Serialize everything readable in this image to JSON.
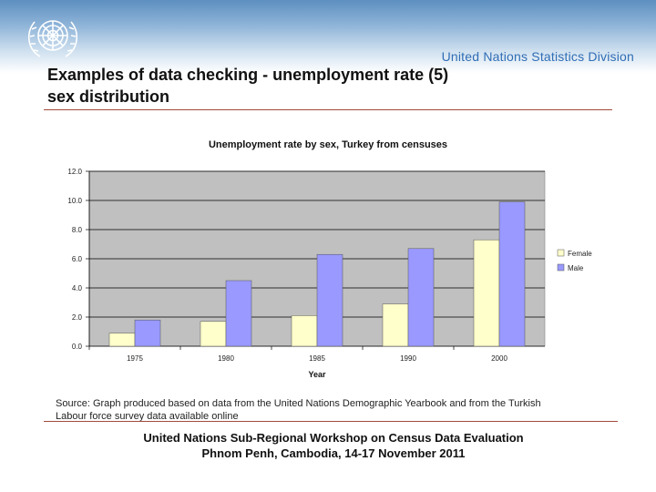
{
  "header": {
    "division": "United Nations Statistics Division",
    "logo_icon": "un-emblem-icon"
  },
  "slide": {
    "title_line1": "Examples of data checking - unemployment rate (5)",
    "title_line2": "sex distribution"
  },
  "chart_data": {
    "type": "bar",
    "title": "Unemployment rate by sex, Turkey from censuses",
    "xlabel": "Year",
    "ylabel": "",
    "categories": [
      "1975",
      "1980",
      "1985",
      "1990",
      "2000"
    ],
    "series": [
      {
        "name": "Female",
        "values": [
          0.9,
          1.7,
          2.1,
          2.9,
          7.3
        ],
        "color": "#ffffcc"
      },
      {
        "name": "Male",
        "values": [
          1.8,
          4.5,
          6.3,
          6.7,
          9.9
        ],
        "color": "#9999ff"
      }
    ],
    "ylim": [
      0,
      12
    ],
    "yticks": [
      "0.0",
      "2.0",
      "4.0",
      "6.0",
      "8.0",
      "10.0",
      "12.0"
    ],
    "grid": true,
    "legend": "right",
    "plot_background": "#c0c0c0"
  },
  "source": {
    "line1": "Source: Graph produced based on data from the United Nations Demographic Yearbook and from the Turkish",
    "line2": "Labour force survey data available online"
  },
  "footer": {
    "line1": "United Nations Sub-Regional Workshop on Census Data Evaluation",
    "line2": "Phnom Penh, Cambodia, 14-17 November 2011"
  }
}
